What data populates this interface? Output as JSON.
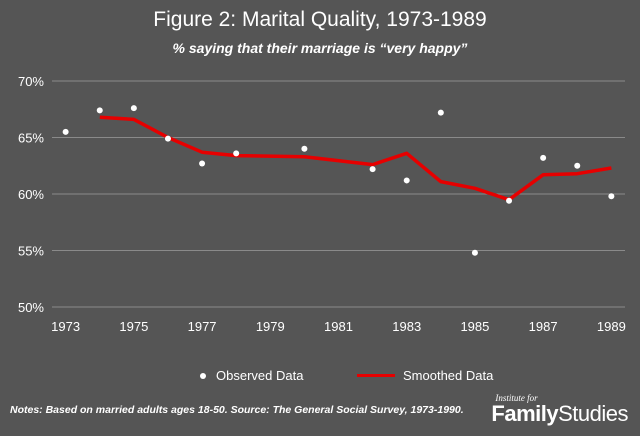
{
  "chart_data": {
    "type": "line",
    "title": "Figure 2: Marital Quality, 1973-1989",
    "subtitle": "%  saying that their marriage is “very happy”",
    "xlabel": "",
    "ylabel": "",
    "xlim": [
      1972.6,
      1989.4
    ],
    "ylim": [
      50,
      70
    ],
    "y_ticks": [
      "50%",
      "55%",
      "60%",
      "65%",
      "70%"
    ],
    "y_tick_values": [
      50,
      55,
      60,
      65,
      70
    ],
    "x_ticks": [
      "1973",
      "1975",
      "1977",
      "1979",
      "1981",
      "1983",
      "1985",
      "1987",
      "1989"
    ],
    "x_tick_values": [
      1973,
      1975,
      1977,
      1979,
      1981,
      1983,
      1985,
      1987,
      1989
    ],
    "grid": true,
    "legend_position": "bottom",
    "series": [
      {
        "name": "Observed Data",
        "kind": "scatter",
        "color": "#ffffff",
        "x": [
          1973,
          1974,
          1975,
          1976,
          1977,
          1978,
          1980,
          1982,
          1983,
          1984,
          1985,
          1986,
          1987,
          1988,
          1989
        ],
        "y": [
          65.5,
          67.4,
          67.6,
          64.9,
          62.7,
          63.6,
          64.0,
          62.2,
          61.2,
          67.2,
          54.8,
          59.4,
          63.2,
          62.5,
          59.8
        ]
      },
      {
        "name": "Smoothed Data",
        "kind": "line",
        "color": "#e60000",
        "x": [
          1974,
          1975,
          1976,
          1977,
          1978,
          1980,
          1982,
          1983,
          1984,
          1985,
          1986,
          1987,
          1988,
          1989
        ],
        "y": [
          66.8,
          66.6,
          65.0,
          63.7,
          63.4,
          63.3,
          62.6,
          63.6,
          61.1,
          60.5,
          59.5,
          61.7,
          61.8,
          62.3
        ]
      }
    ]
  },
  "notes": "Notes: Based on married adults ages 18-50. Source: The General Social Survey, 1973-1990.",
  "logo": {
    "small": "Institute for",
    "big_bold": "Family",
    "big_thin": "Studies"
  },
  "colors": {
    "background": "#555555",
    "grid": "#8a8a8a",
    "line": "#e60000",
    "points": "#ffffff"
  }
}
